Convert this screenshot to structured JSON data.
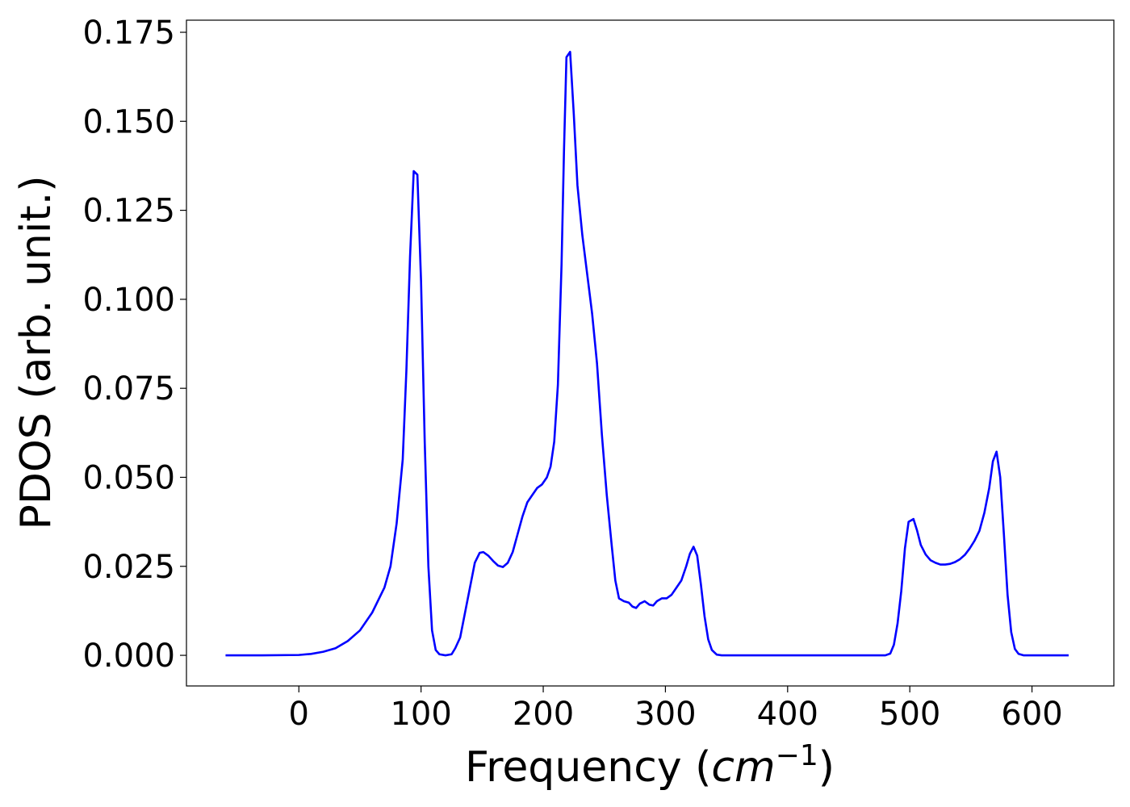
{
  "chart_data": {
    "type": "line",
    "x_label": [
      "Frequency (",
      "cm",
      "−1",
      ")"
    ],
    "y_label": "PDOS (arb. unit.)",
    "color": "#0000ff",
    "x": [
      -60,
      -30,
      0,
      10,
      20,
      30,
      40,
      50,
      60,
      70,
      75,
      80,
      85,
      88,
      91,
      94,
      97,
      100,
      103,
      106,
      109,
      112,
      115,
      120,
      125,
      128,
      132,
      136,
      140,
      144,
      148,
      151,
      155,
      159,
      163,
      167,
      171,
      175,
      179,
      183,
      187,
      191,
      195,
      199,
      203,
      206,
      209,
      212,
      215,
      217,
      219,
      222,
      225,
      228,
      232,
      236,
      240,
      244,
      248,
      252,
      256,
      259,
      262,
      266,
      270,
      273,
      276,
      279,
      283,
      287,
      290,
      293,
      297,
      301,
      305,
      309,
      313,
      317,
      320,
      323,
      326,
      329,
      332,
      335,
      338,
      342,
      346,
      480,
      484,
      487,
      490,
      493,
      496,
      499,
      503,
      506,
      509,
      513,
      517,
      521,
      525,
      529,
      533,
      537,
      541,
      545,
      549,
      553,
      557,
      561,
      565,
      568,
      571,
      574,
      577,
      580,
      583,
      586,
      589,
      593,
      630
    ],
    "values": [
      0,
      0,
      0.0001,
      0.0004,
      0.001,
      0.002,
      0.004,
      0.007,
      0.012,
      0.019,
      0.025,
      0.037,
      0.055,
      0.08,
      0.112,
      0.136,
      0.135,
      0.105,
      0.06,
      0.025,
      0.007,
      0.0015,
      0.0003,
      0,
      0.0003,
      0.002,
      0.005,
      0.012,
      0.019,
      0.026,
      0.0288,
      0.029,
      0.028,
      0.0265,
      0.0252,
      0.0248,
      0.026,
      0.029,
      0.034,
      0.039,
      0.043,
      0.045,
      0.047,
      0.048,
      0.05,
      0.053,
      0.06,
      0.076,
      0.11,
      0.142,
      0.168,
      0.1695,
      0.152,
      0.132,
      0.118,
      0.107,
      0.096,
      0.082,
      0.062,
      0.045,
      0.031,
      0.021,
      0.016,
      0.0152,
      0.0148,
      0.0137,
      0.0133,
      0.0145,
      0.0152,
      0.0142,
      0.014,
      0.0152,
      0.016,
      0.016,
      0.017,
      0.019,
      0.021,
      0.025,
      0.0285,
      0.0305,
      0.028,
      0.02,
      0.011,
      0.0045,
      0.0015,
      0.0002,
      0,
      0,
      0.0005,
      0.003,
      0.009,
      0.018,
      0.03,
      0.0375,
      0.0383,
      0.035,
      0.031,
      0.0283,
      0.0267,
      0.026,
      0.0255,
      0.0255,
      0.0257,
      0.0262,
      0.027,
      0.0282,
      0.03,
      0.0322,
      0.035,
      0.04,
      0.047,
      0.0545,
      0.0572,
      0.05,
      0.034,
      0.017,
      0.0065,
      0.0018,
      0.0004,
      0,
      0
    ],
    "xlim": [
      -92,
      667
    ],
    "ylim": [
      -0.0086,
      0.1784
    ],
    "xticks": [
      0,
      100,
      200,
      300,
      400,
      500,
      600
    ],
    "yticks": [
      {
        "value": 0,
        "label": "0.000"
      },
      {
        "value": 0.025,
        "label": "0.025"
      },
      {
        "value": 0.05,
        "label": "0.050"
      },
      {
        "value": 0.075,
        "label": "0.075"
      },
      {
        "value": 0.1,
        "label": "0.100"
      },
      {
        "value": 0.125,
        "label": "0.125"
      },
      {
        "value": 0.15,
        "label": "0.150"
      },
      {
        "value": 0.175,
        "label": "0.175"
      }
    ],
    "grid": false
  }
}
